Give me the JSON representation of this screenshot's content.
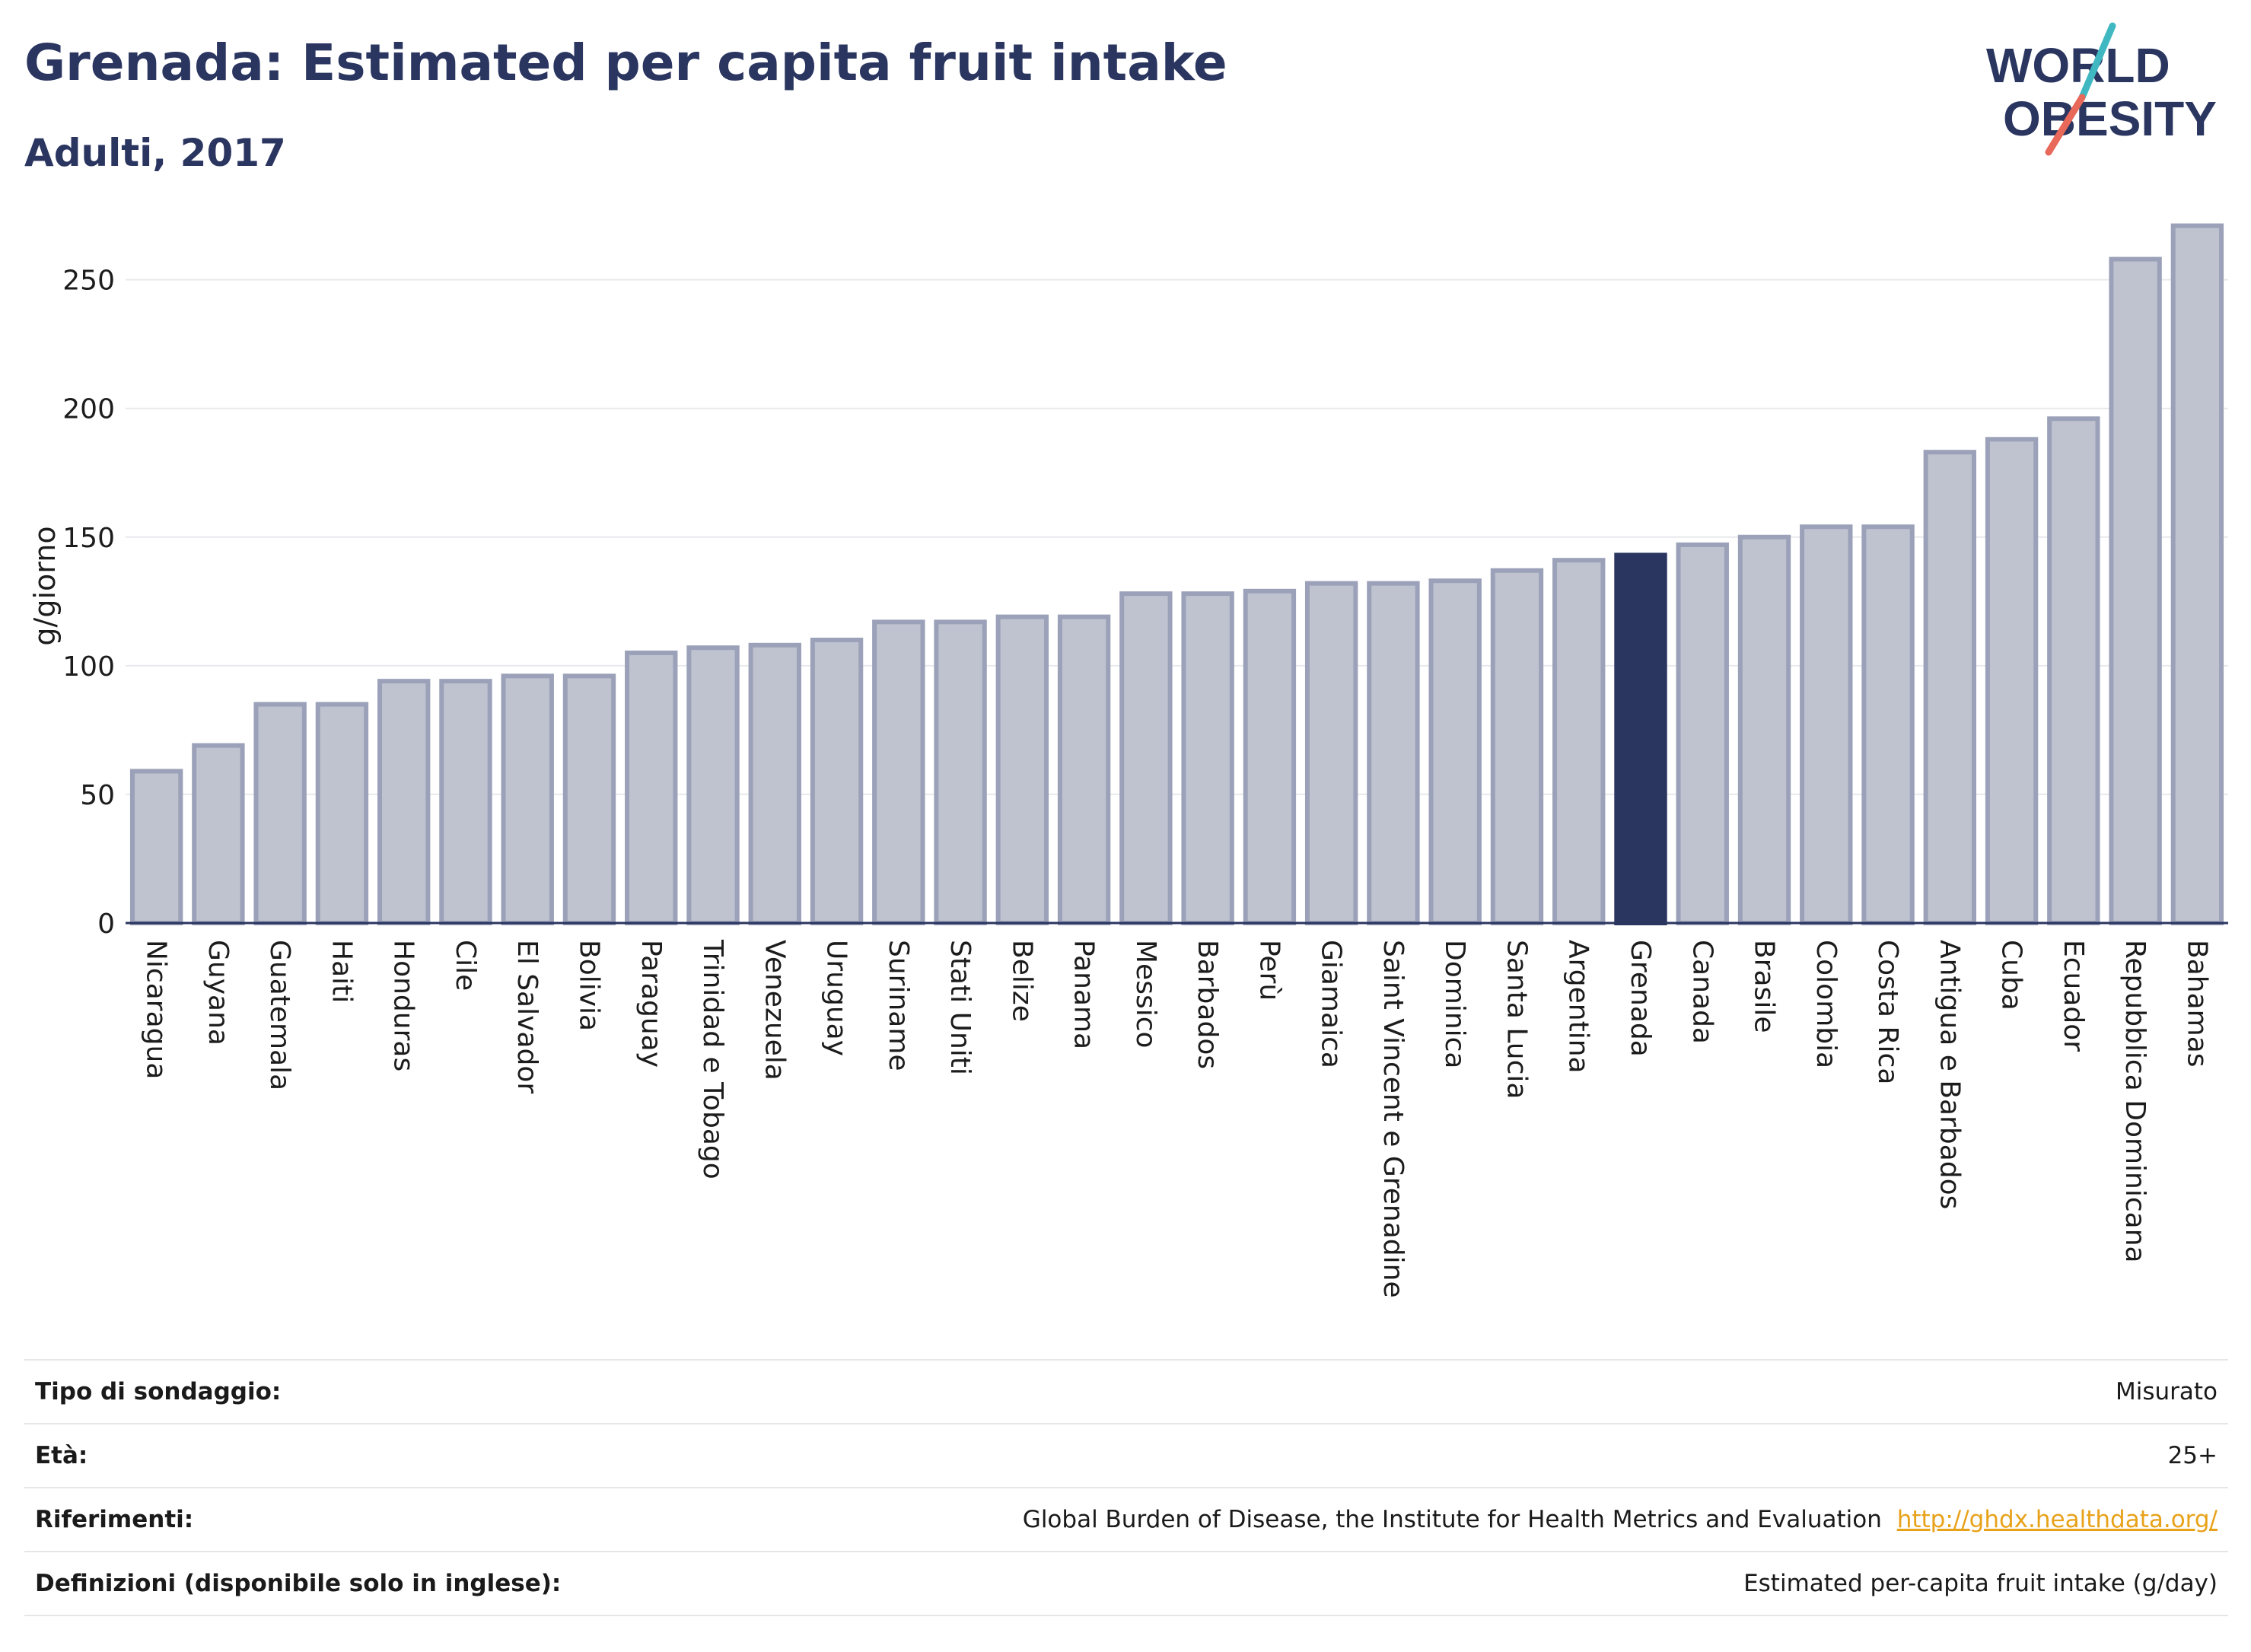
{
  "header": {
    "title": "Grenada: Estimated per capita fruit intake",
    "subtitle": "Adulti, 2017"
  },
  "logo": {
    "line1": "WORLD",
    "line2": "OBESITY",
    "colors": {
      "text": "#2a3560",
      "slash_teal": "#3fb8c2",
      "slash_coral": "#e8685a"
    }
  },
  "colors": {
    "bar_fill": "#bfc3d0",
    "bar_stroke": "#9ba1b8",
    "highlight": "#2a3560",
    "grid": "#e8e9ee",
    "axis": "#2a3560"
  },
  "chart_data": {
    "type": "bar",
    "title": "Grenada: Estimated per capita fruit intake",
    "subtitle": "Adulti, 2017",
    "xlabel": "",
    "ylabel": "g/giorno",
    "ylim": [
      0,
      270
    ],
    "yticks": [
      0,
      50,
      100,
      150,
      200,
      250
    ],
    "grid": true,
    "legend": "none",
    "highlight_category": "Grenada",
    "categories": [
      "Nicaragua",
      "Guyana",
      "Guatemala",
      "Haiti",
      "Honduras",
      "Cile",
      "El Salvador",
      "Bolivia",
      "Paraguay",
      "Trinidad e Tobago",
      "Venezuela",
      "Uruguay",
      "Suriname",
      "Stati Uniti",
      "Belize",
      "Panama",
      "Messico",
      "Barbados",
      "Perù",
      "Giamaica",
      "Saint Vincent e Grenadine",
      "Dominica",
      "Santa Lucia",
      "Argentina",
      "Grenada",
      "Canada",
      "Brasile",
      "Colombia",
      "Costa Rica",
      "Antigua e Barbados",
      "Cuba",
      "Ecuador",
      "Repubblica Dominicana",
      "Bahamas"
    ],
    "values": [
      59,
      69,
      85,
      85,
      94,
      94,
      96,
      96,
      105,
      107,
      108,
      110,
      117,
      117,
      119,
      119,
      128,
      128,
      129,
      132,
      132,
      133,
      137,
      141,
      143,
      147,
      150,
      154,
      154,
      183,
      188,
      196,
      258,
      271
    ]
  },
  "info_table": [
    {
      "label": "Tipo di sondaggio:",
      "value": "Misurato"
    },
    {
      "label": "Età:",
      "value": "25+"
    },
    {
      "label": "Riferimenti:",
      "value": "Global Burden of Disease, the Institute for Health Metrics and Evaluation",
      "link": "http://ghdx.healthdata.org/"
    },
    {
      "label": "Definizioni (disponibile solo in inglese):",
      "value": "Estimated per-capita fruit intake (g/day)"
    }
  ]
}
